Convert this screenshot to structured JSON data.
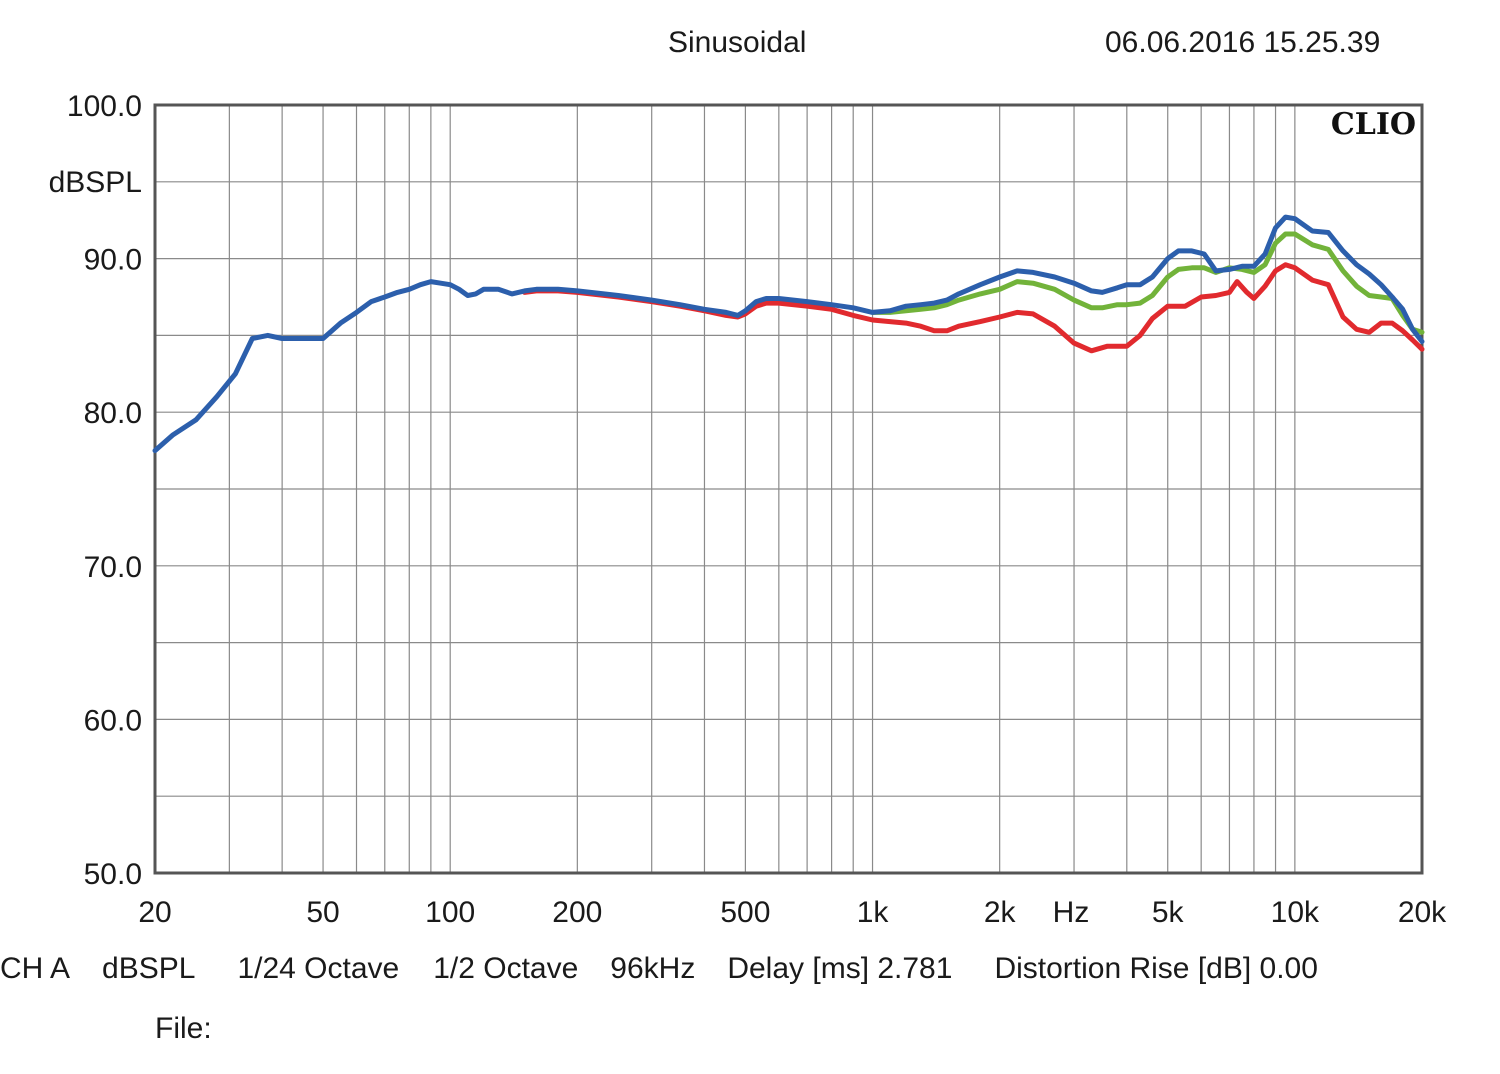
{
  "header": {
    "title": "Sinusoidal",
    "datetime": "06.06.2016 15.25.39",
    "logo": "CLIO"
  },
  "footer": {
    "channel": "CH A",
    "unit": "dBSPL",
    "resolution": "1/24 Octave",
    "smoothing": "1/2 Octave",
    "sample_rate": "96kHz",
    "delay": "Delay [ms] 2.781",
    "distortion": "Distortion Rise [dB] 0.00",
    "file_label": "File:"
  },
  "chart_data": {
    "type": "line",
    "title": "Sinusoidal",
    "xlabel": "Hz",
    "ylabel": "dBSPL",
    "xscale": "log",
    "xlim": [
      20,
      20000
    ],
    "ylim": [
      50,
      100
    ],
    "grid": true,
    "x_ticks": [
      20,
      50,
      100,
      200,
      500,
      1000,
      2000,
      5000,
      10000,
      20000
    ],
    "x_tick_labels": [
      "20",
      "50",
      "100",
      "200",
      "500",
      "1k",
      "2k",
      "5k",
      "10k",
      "20k"
    ],
    "y_ticks": [
      50,
      60,
      70,
      80,
      90,
      100
    ],
    "y_tick_labels": [
      "50.0",
      "60.0",
      "70.0",
      "80.0",
      "90.0",
      "100.0"
    ],
    "series": [
      {
        "color": "#2c5fac",
        "points": [
          [
            20,
            77.5
          ],
          [
            22,
            78.5
          ],
          [
            25,
            79.5
          ],
          [
            28,
            81
          ],
          [
            31,
            82.5
          ],
          [
            34,
            84.8
          ],
          [
            37,
            85
          ],
          [
            40,
            84.8
          ],
          [
            45,
            84.8
          ],
          [
            50,
            84.8
          ],
          [
            55,
            85.8
          ],
          [
            60,
            86.5
          ],
          [
            65,
            87.2
          ],
          [
            70,
            87.5
          ],
          [
            75,
            87.8
          ],
          [
            80,
            88
          ],
          [
            85,
            88.3
          ],
          [
            90,
            88.5
          ],
          [
            95,
            88.4
          ],
          [
            100,
            88.3
          ],
          [
            105,
            88
          ],
          [
            110,
            87.6
          ],
          [
            115,
            87.7
          ],
          [
            120,
            88
          ],
          [
            130,
            88
          ],
          [
            140,
            87.7
          ],
          [
            150,
            87.9
          ],
          [
            160,
            88
          ],
          [
            180,
            88
          ],
          [
            200,
            87.9
          ],
          [
            250,
            87.6
          ],
          [
            300,
            87.3
          ],
          [
            350,
            87
          ],
          [
            400,
            86.7
          ],
          [
            450,
            86.5
          ],
          [
            480,
            86.3
          ],
          [
            500,
            86.6
          ],
          [
            530,
            87.2
          ],
          [
            560,
            87.4
          ],
          [
            600,
            87.4
          ],
          [
            700,
            87.2
          ],
          [
            800,
            87
          ],
          [
            900,
            86.8
          ],
          [
            1000,
            86.5
          ],
          [
            1100,
            86.6
          ],
          [
            1200,
            86.9
          ],
          [
            1300,
            87
          ],
          [
            1400,
            87.1
          ],
          [
            1500,
            87.3
          ],
          [
            1600,
            87.7
          ],
          [
            1800,
            88.3
          ],
          [
            2000,
            88.8
          ],
          [
            2200,
            89.2
          ],
          [
            2400,
            89.1
          ],
          [
            2700,
            88.8
          ],
          [
            3000,
            88.4
          ],
          [
            3300,
            87.9
          ],
          [
            3500,
            87.8
          ],
          [
            3800,
            88.1
          ],
          [
            4000,
            88.3
          ],
          [
            4300,
            88.3
          ],
          [
            4600,
            88.8
          ],
          [
            5000,
            90
          ],
          [
            5300,
            90.5
          ],
          [
            5700,
            90.5
          ],
          [
            6100,
            90.3
          ],
          [
            6500,
            89.2
          ],
          [
            7000,
            89.3
          ],
          [
            7500,
            89.5
          ],
          [
            8000,
            89.5
          ],
          [
            8500,
            90.3
          ],
          [
            9000,
            92
          ],
          [
            9500,
            92.7
          ],
          [
            10000,
            92.6
          ],
          [
            11000,
            91.8
          ],
          [
            12000,
            91.7
          ],
          [
            13000,
            90.5
          ],
          [
            14000,
            89.6
          ],
          [
            15000,
            89
          ],
          [
            16000,
            88.3
          ],
          [
            17000,
            87.5
          ],
          [
            18000,
            86.7
          ],
          [
            19000,
            85.4
          ],
          [
            20000,
            84.6
          ]
        ]
      },
      {
        "color": "#72b33a",
        "points": [
          [
            1000,
            86.5
          ],
          [
            1100,
            86.5
          ],
          [
            1200,
            86.6
          ],
          [
            1300,
            86.7
          ],
          [
            1400,
            86.8
          ],
          [
            1500,
            87
          ],
          [
            1600,
            87.3
          ],
          [
            1800,
            87.7
          ],
          [
            2000,
            88
          ],
          [
            2200,
            88.5
          ],
          [
            2400,
            88.4
          ],
          [
            2700,
            88
          ],
          [
            3000,
            87.3
          ],
          [
            3300,
            86.8
          ],
          [
            3500,
            86.8
          ],
          [
            3800,
            87
          ],
          [
            4000,
            87
          ],
          [
            4300,
            87.1
          ],
          [
            4600,
            87.6
          ],
          [
            5000,
            88.8
          ],
          [
            5300,
            89.3
          ],
          [
            5700,
            89.4
          ],
          [
            6100,
            89.4
          ],
          [
            6500,
            89.1
          ],
          [
            7000,
            89.4
          ],
          [
            7500,
            89.3
          ],
          [
            8000,
            89.1
          ],
          [
            8500,
            89.6
          ],
          [
            9000,
            91
          ],
          [
            9500,
            91.6
          ],
          [
            10000,
            91.6
          ],
          [
            11000,
            90.9
          ],
          [
            12000,
            90.6
          ],
          [
            13000,
            89.2
          ],
          [
            14000,
            88.2
          ],
          [
            15000,
            87.6
          ],
          [
            16000,
            87.5
          ],
          [
            17000,
            87.4
          ],
          [
            18000,
            86.3
          ],
          [
            19000,
            85.4
          ],
          [
            20000,
            85.2
          ]
        ]
      },
      {
        "color": "#e12a2e",
        "points": [
          [
            150,
            87.8
          ],
          [
            160,
            87.9
          ],
          [
            180,
            87.9
          ],
          [
            200,
            87.8
          ],
          [
            250,
            87.5
          ],
          [
            300,
            87.2
          ],
          [
            350,
            86.9
          ],
          [
            400,
            86.6
          ],
          [
            450,
            86.3
          ],
          [
            480,
            86.2
          ],
          [
            500,
            86.4
          ],
          [
            530,
            86.9
          ],
          [
            560,
            87.1
          ],
          [
            600,
            87.1
          ],
          [
            700,
            86.9
          ],
          [
            800,
            86.7
          ],
          [
            900,
            86.3
          ],
          [
            1000,
            86
          ],
          [
            1100,
            85.9
          ],
          [
            1200,
            85.8
          ],
          [
            1300,
            85.6
          ],
          [
            1400,
            85.3
          ],
          [
            1500,
            85.3
          ],
          [
            1600,
            85.6
          ],
          [
            1800,
            85.9
          ],
          [
            2000,
            86.2
          ],
          [
            2200,
            86.5
          ],
          [
            2400,
            86.4
          ],
          [
            2700,
            85.6
          ],
          [
            3000,
            84.5
          ],
          [
            3300,
            84
          ],
          [
            3600,
            84.3
          ],
          [
            4000,
            84.3
          ],
          [
            4300,
            85
          ],
          [
            4600,
            86.1
          ],
          [
            5000,
            86.9
          ],
          [
            5500,
            86.9
          ],
          [
            6000,
            87.5
          ],
          [
            6500,
            87.6
          ],
          [
            7000,
            87.8
          ],
          [
            7300,
            88.5
          ],
          [
            7700,
            87.8
          ],
          [
            8000,
            87.4
          ],
          [
            8500,
            88.2
          ],
          [
            9000,
            89.2
          ],
          [
            9500,
            89.6
          ],
          [
            10000,
            89.4
          ],
          [
            11000,
            88.6
          ],
          [
            12000,
            88.3
          ],
          [
            13000,
            86.2
          ],
          [
            14000,
            85.4
          ],
          [
            15000,
            85.2
          ],
          [
            16000,
            85.8
          ],
          [
            17000,
            85.8
          ],
          [
            18000,
            85.3
          ],
          [
            19000,
            84.7
          ],
          [
            20000,
            84.1
          ]
        ]
      }
    ]
  }
}
